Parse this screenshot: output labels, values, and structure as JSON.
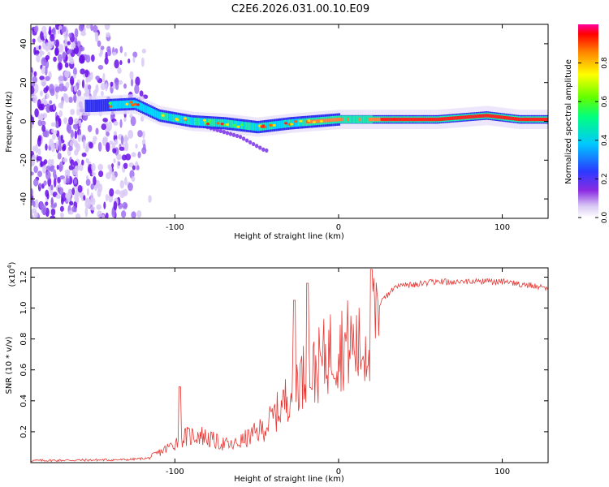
{
  "title": "C2E6.2026.031.00.10.E09",
  "top_panel": {
    "chart_data": {
      "type": "heatmap",
      "title": "C2E6.2026.031.00.10.E09",
      "xlabel": "Height of straight line (km)",
      "ylabel": "Frequency (Hz)",
      "xlim": [
        -188,
        128
      ],
      "ylim": [
        -50,
        50
      ],
      "x_ticks": [
        -100,
        0,
        100
      ],
      "y_ticks": [
        -40,
        -20,
        0,
        20,
        40
      ],
      "colorbar": {
        "label": "Normalized spectral amplitude",
        "range": [
          0,
          1
        ],
        "ticks": [
          0.0,
          0.2,
          0.4,
          0.6,
          0.8
        ],
        "colormap": "rainbow (violet-blue-cyan-green-yellow-red)"
      },
      "ridge": [
        {
          "x": -150,
          "freq": 8
        },
        {
          "x": -125,
          "freq": 9
        },
        {
          "x": -110,
          "freq": 3
        },
        {
          "x": -90,
          "freq": 0
        },
        {
          "x": -70,
          "freq": -1
        },
        {
          "x": -50,
          "freq": -3
        },
        {
          "x": -30,
          "freq": -1
        },
        {
          "x": -15,
          "freq": 0
        },
        {
          "x": 0,
          "freq": 1
        },
        {
          "x": 20,
          "freq": 1
        },
        {
          "x": 60,
          "freq": 1
        },
        {
          "x": 90,
          "freq": 3
        },
        {
          "x": 110,
          "freq": 1
        },
        {
          "x": 128,
          "freq": 1
        }
      ],
      "secondary_branch": [
        {
          "x": -80,
          "freq": -3
        },
        {
          "x": -60,
          "freq": -8
        },
        {
          "x": -45,
          "freq": -15
        }
      ]
    }
  },
  "bottom_panel": {
    "chart_data": {
      "type": "line",
      "xlabel": "Height of straight line (km)",
      "ylabel": "SNR (10 * v/v)",
      "scale_label": "(x10",
      "scale_exp": "4",
      "scale_close": ")",
      "xlim": [
        -188,
        128
      ],
      "ylim": [
        0,
        1.26
      ],
      "x_ticks": [
        -100,
        0,
        100
      ],
      "y_ticks": [
        0.2,
        0.4,
        0.6,
        0.8,
        1.0,
        1.2
      ],
      "series": [
        {
          "name": "SNR",
          "color": "#e53935",
          "envelope": [
            {
              "x": -188,
              "y": 0.01
            },
            {
              "x": -130,
              "y": 0.02
            },
            {
              "x": -115,
              "y": 0.04
            },
            {
              "x": -105,
              "y": 0.1
            },
            {
              "x": -95,
              "y": 0.18
            },
            {
              "x": -85,
              "y": 0.2
            },
            {
              "x": -75,
              "y": 0.15
            },
            {
              "x": -65,
              "y": 0.12
            },
            {
              "x": -55,
              "y": 0.18
            },
            {
              "x": -45,
              "y": 0.25
            },
            {
              "x": -35,
              "y": 0.4
            },
            {
              "x": -25,
              "y": 0.6
            },
            {
              "x": -15,
              "y": 0.65
            },
            {
              "x": -5,
              "y": 0.8
            },
            {
              "x": 5,
              "y": 0.85
            },
            {
              "x": 15,
              "y": 0.8
            },
            {
              "x": 25,
              "y": 1.05
            },
            {
              "x": 35,
              "y": 1.16
            },
            {
              "x": 60,
              "y": 1.19
            },
            {
              "x": 100,
              "y": 1.19
            },
            {
              "x": 128,
              "y": 1.15
            }
          ],
          "spikes": [
            {
              "x": -97,
              "y": 0.49
            },
            {
              "x": -27,
              "y": 1.05
            },
            {
              "x": -19,
              "y": 1.16
            },
            {
              "x": 20,
              "y": 1.25
            }
          ]
        }
      ]
    }
  },
  "colors": {
    "axis": "#000000",
    "line": "#e53935",
    "background": "#ffffff"
  }
}
